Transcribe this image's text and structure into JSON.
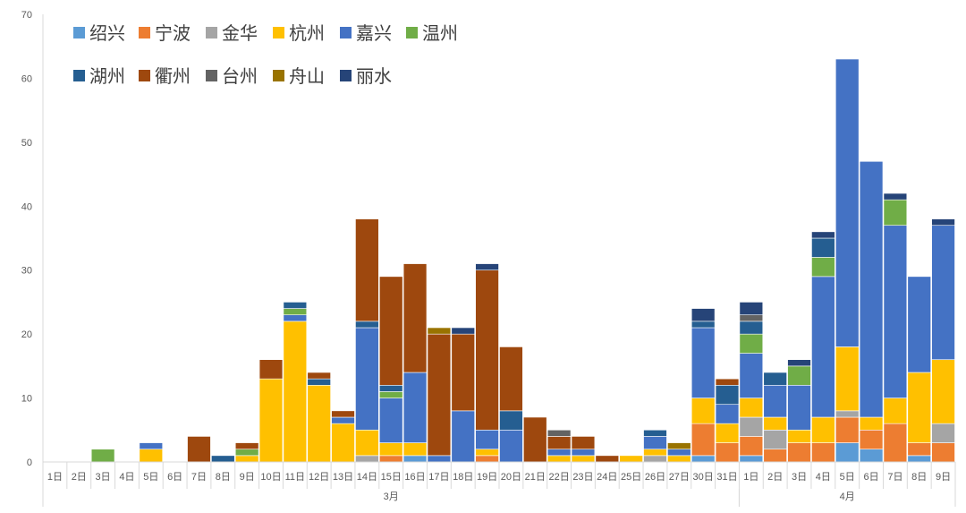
{
  "chart_data": {
    "type": "bar",
    "stacked": true,
    "ylim": [
      0,
      70
    ],
    "yticks": [
      0,
      10,
      20,
      30,
      40,
      50,
      60,
      70
    ],
    "legend_position": "top-left",
    "grid": false,
    "categories": [
      "1日",
      "2日",
      "3日",
      "4日",
      "5日",
      "6日",
      "7日",
      "8日",
      "9日",
      "10日",
      "11日",
      "12日",
      "13日",
      "14日",
      "15日",
      "16日",
      "17日",
      "18日",
      "19日",
      "20日",
      "21日",
      "22日",
      "23日",
      "24日",
      "25日",
      "26日",
      "27日",
      "30日",
      "31日",
      "1日",
      "2日",
      "3日",
      "4日",
      "5日",
      "6日",
      "7日",
      "8日",
      "9日"
    ],
    "month_groups": [
      {
        "label": "3月",
        "start": 0,
        "end": 28
      },
      {
        "label": "4月",
        "start": 29,
        "end": 37
      }
    ],
    "series": [
      {
        "name": "绍兴",
        "color": "#5B9BD5",
        "values": [
          0,
          0,
          0,
          0,
          0,
          0,
          0,
          0,
          0,
          0,
          0,
          0,
          0,
          0,
          0,
          1,
          0,
          0,
          0,
          0,
          0,
          0,
          0,
          0,
          0,
          0,
          0,
          1,
          0,
          1,
          0,
          0,
          0,
          3,
          2,
          0,
          1,
          0
        ]
      },
      {
        "name": "宁波",
        "color": "#ED7D31",
        "values": [
          0,
          0,
          0,
          0,
          0,
          0,
          0,
          0,
          0,
          0,
          0,
          0,
          0,
          0,
          1,
          0,
          0,
          0,
          1,
          0,
          0,
          0,
          0,
          0,
          0,
          0,
          0,
          5,
          3,
          3,
          2,
          3,
          3,
          4,
          3,
          6,
          2,
          3
        ]
      },
      {
        "name": "金华",
        "color": "#A5A5A5",
        "values": [
          0,
          0,
          0,
          0,
          0,
          0,
          0,
          0,
          0,
          0,
          0,
          0,
          0,
          1,
          0,
          0,
          0,
          0,
          0,
          0,
          0,
          0,
          0,
          0,
          0,
          1,
          0,
          0,
          0,
          3,
          3,
          0,
          0,
          1,
          0,
          0,
          0,
          3
        ]
      },
      {
        "name": "杭州",
        "color": "#FFC000",
        "values": [
          0,
          0,
          0,
          0,
          2,
          0,
          0,
          0,
          1,
          13,
          22,
          12,
          6,
          4,
          2,
          2,
          0,
          0,
          1,
          0,
          0,
          1,
          1,
          0,
          1,
          1,
          1,
          4,
          3,
          3,
          2,
          2,
          4,
          10,
          2,
          4,
          11,
          10
        ]
      },
      {
        "name": "嘉兴",
        "color": "#4472C4",
        "values": [
          0,
          0,
          0,
          0,
          1,
          0,
          0,
          0,
          0,
          0,
          1,
          0,
          1,
          16,
          7,
          11,
          1,
          8,
          3,
          5,
          0,
          1,
          1,
          0,
          0,
          2,
          1,
          11,
          3,
          7,
          5,
          7,
          22,
          45,
          40,
          27,
          15,
          21
        ]
      },
      {
        "name": "温州",
        "color": "#70AD47",
        "values": [
          0,
          0,
          2,
          0,
          0,
          0,
          0,
          0,
          1,
          0,
          1,
          0,
          0,
          0,
          1,
          0,
          0,
          0,
          0,
          0,
          0,
          0,
          0,
          0,
          0,
          0,
          0,
          0,
          0,
          3,
          0,
          3,
          3,
          0,
          0,
          4,
          0,
          0
        ]
      },
      {
        "name": "湖州",
        "color": "#255E91",
        "values": [
          0,
          0,
          0,
          0,
          0,
          0,
          0,
          1,
          0,
          0,
          1,
          1,
          0,
          1,
          1,
          0,
          0,
          0,
          0,
          3,
          0,
          0,
          0,
          0,
          0,
          1,
          0,
          1,
          3,
          2,
          2,
          0,
          3,
          0,
          0,
          0,
          0,
          0
        ]
      },
      {
        "name": "衢州",
        "color": "#9E480E",
        "values": [
          0,
          0,
          0,
          0,
          0,
          0,
          4,
          0,
          1,
          3,
          0,
          1,
          1,
          16,
          17,
          17,
          19,
          12,
          25,
          10,
          7,
          2,
          2,
          1,
          0,
          0,
          0,
          0,
          1,
          0,
          0,
          0,
          0,
          0,
          0,
          0,
          0,
          0
        ]
      },
      {
        "name": "台州",
        "color": "#636363",
        "values": [
          0,
          0,
          0,
          0,
          0,
          0,
          0,
          0,
          0,
          0,
          0,
          0,
          0,
          0,
          0,
          0,
          0,
          0,
          0,
          0,
          0,
          1,
          0,
          0,
          0,
          0,
          0,
          0,
          0,
          1,
          0,
          0,
          0,
          0,
          0,
          0,
          0,
          0
        ]
      },
      {
        "name": "舟山",
        "color": "#997300",
        "values": [
          0,
          0,
          0,
          0,
          0,
          0,
          0,
          0,
          0,
          0,
          0,
          0,
          0,
          0,
          0,
          0,
          1,
          0,
          0,
          0,
          0,
          0,
          0,
          0,
          0,
          0,
          1,
          0,
          0,
          0,
          0,
          0,
          0,
          0,
          0,
          0,
          0,
          0
        ]
      },
      {
        "name": "丽水",
        "color": "#264478",
        "values": [
          0,
          0,
          0,
          0,
          0,
          0,
          0,
          0,
          0,
          0,
          0,
          0,
          0,
          0,
          0,
          0,
          0,
          1,
          1,
          0,
          0,
          0,
          0,
          0,
          0,
          0,
          0,
          2,
          0,
          2,
          0,
          1,
          1,
          0,
          0,
          1,
          0,
          1
        ]
      }
    ]
  }
}
